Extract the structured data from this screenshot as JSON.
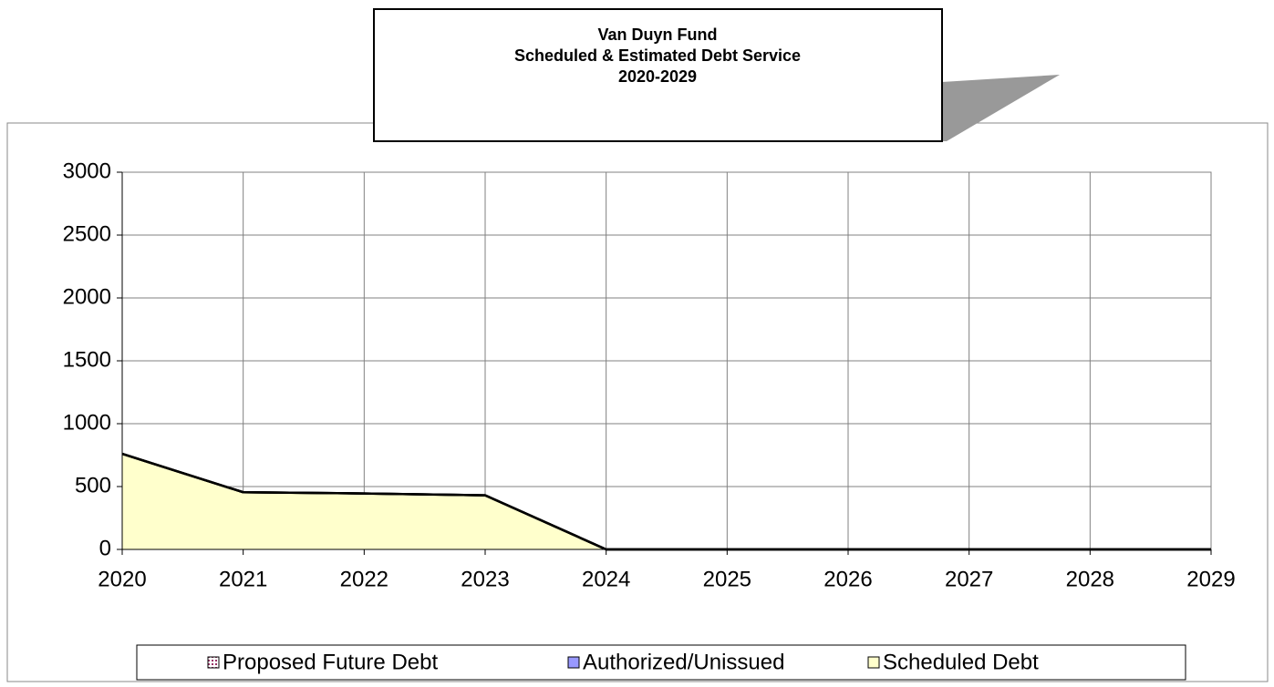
{
  "chart_data": {
    "type": "stacked_area",
    "title": [
      "Van Duyn Fund",
      "Scheduled & Estimated Debt Service",
      "2020-2029"
    ],
    "x": [
      2020,
      2021,
      2022,
      2023,
      2024,
      2025,
      2026,
      2027,
      2028,
      2029
    ],
    "xlim": [
      2020,
      2029
    ],
    "xticks": [
      2020,
      2021,
      2022,
      2023,
      2024,
      2025,
      2026,
      2027,
      2028,
      2029
    ],
    "ylim": [
      0,
      3000
    ],
    "yticks": [
      0,
      500,
      1000,
      1500,
      2000,
      2500,
      3000
    ],
    "grid": true,
    "legend": "bottom",
    "series": [
      {
        "name": "Scheduled Debt",
        "color": "#ffffcc",
        "values": [
          760,
          455,
          445,
          430,
          0,
          0,
          0,
          0,
          0,
          0
        ]
      },
      {
        "name": "Authorized/Unissued",
        "color": "#9999ff",
        "values": [
          0,
          0,
          0,
          0,
          0,
          0,
          0,
          0,
          0,
          0
        ]
      },
      {
        "name": "Proposed Future Debt",
        "color": "#993366",
        "values": [
          0,
          0,
          0,
          0,
          0,
          0,
          0,
          0,
          0,
          0
        ]
      }
    ]
  }
}
